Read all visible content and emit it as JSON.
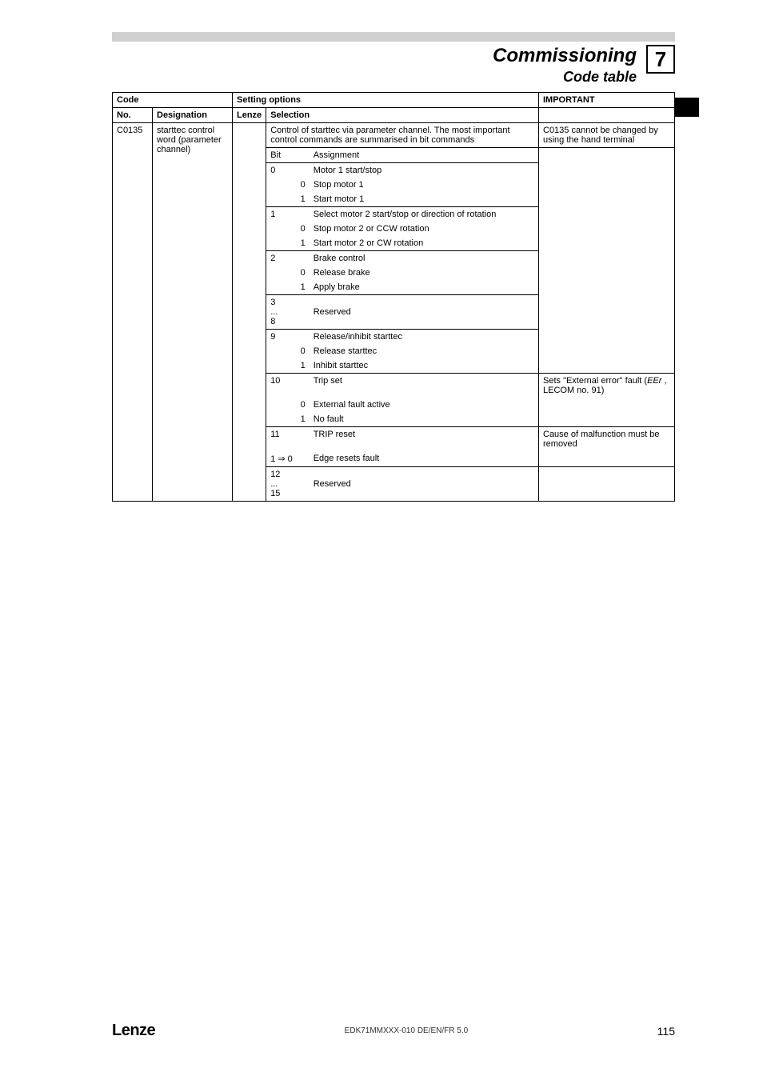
{
  "header": {
    "title": "Commissioning",
    "subtitle": "Code table",
    "chapter": "7"
  },
  "table": {
    "head": {
      "code": "Code",
      "setting": "Setting options",
      "important": "IMPORTANT",
      "no": "No.",
      "designation": "Designation",
      "lenze": "Lenze",
      "selection": "Selection"
    },
    "row": {
      "no": "C0135",
      "designation": "starttec control word (parameter channel)",
      "sel_intro": "Control of starttec via parameter channel. The most important control commands are summarised in bit commands",
      "important_intro": "C0135 cannot be changed by using the hand terminal",
      "bit_label": "Bit",
      "assign_label": "Assignment",
      "r0_bit": "0",
      "r0_label": "Motor 1 start/stop",
      "r0_0": "Stop motor 1",
      "r0_1": "Start motor 1",
      "r1_bit": "1",
      "r1_label": "Select motor 2 start/stop or direction of rotation",
      "r1_0": "Stop motor 2 or CCW rotation",
      "r1_1": "Start motor 2 or CW rotation",
      "r2_bit": "2",
      "r2_label": "Brake control",
      "r2_0": "Release brake",
      "r2_1": "Apply brake",
      "r3_bit": "3\n...\n8",
      "r3_label": "Reserved",
      "r9_bit": "9",
      "r9_label": "Release/inhibit starttec",
      "r9_0": "Release starttec",
      "r9_1": "Inhibit starttec",
      "r10_bit": "10",
      "r10_label": "Trip set",
      "r10_0": "External fault active",
      "r10_1": "No fault",
      "r10_imp1": "Sets \"External error\" fault (",
      "r10_imp_code": "EEr",
      "r10_imp2": " , LECOM no. 91)",
      "r11_bit": "11",
      "r11_label": "TRIP reset",
      "r11_0l": "1 ⇒ 0",
      "r11_0": "Edge resets fault",
      "r11_imp": "Cause of malfunction must be removed",
      "r12_bit": "12\n...\n15",
      "r12_label": "Reserved"
    }
  },
  "footer": {
    "logo": "Lenze",
    "docid": "EDK71MMXXX-010  DE/EN/FR 5.0",
    "page": "115"
  }
}
